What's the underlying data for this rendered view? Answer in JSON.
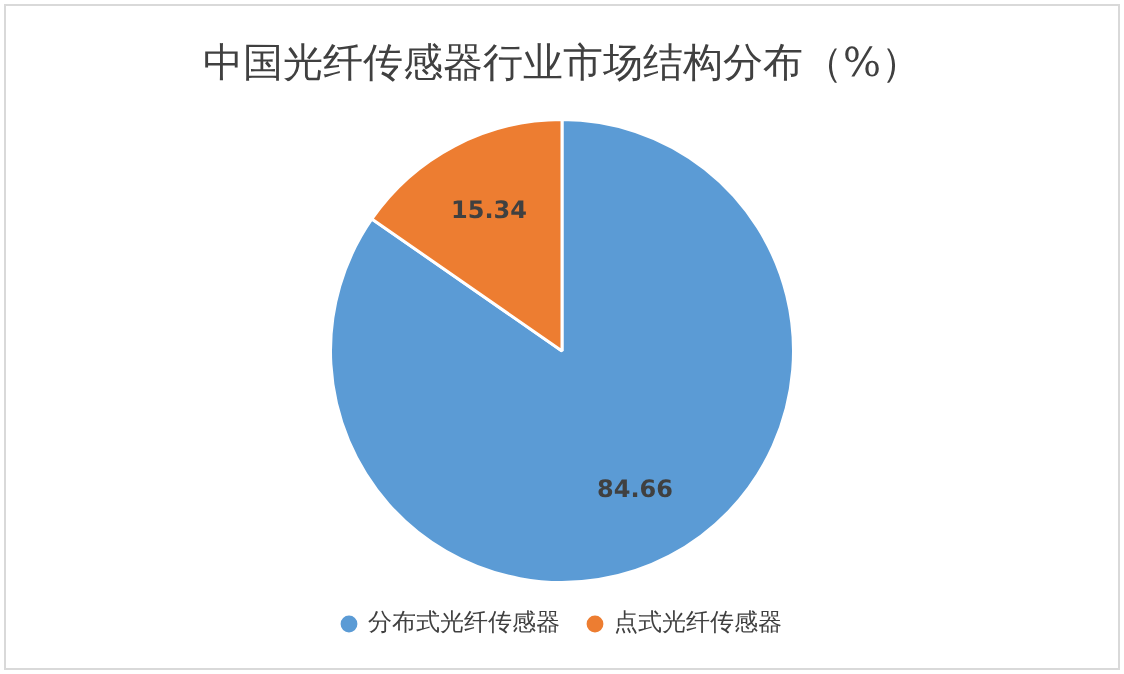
{
  "chart_data": {
    "type": "pie",
    "title": "中国光纤传感器行业市场结构分布（%）",
    "categories": [
      "分布式光纤传感器",
      "点式光纤传感器"
    ],
    "values": [
      84.66,
      15.34
    ],
    "colors": [
      "#5b9bd5",
      "#ed7d31"
    ],
    "data_labels": true,
    "legend": "bottom"
  }
}
